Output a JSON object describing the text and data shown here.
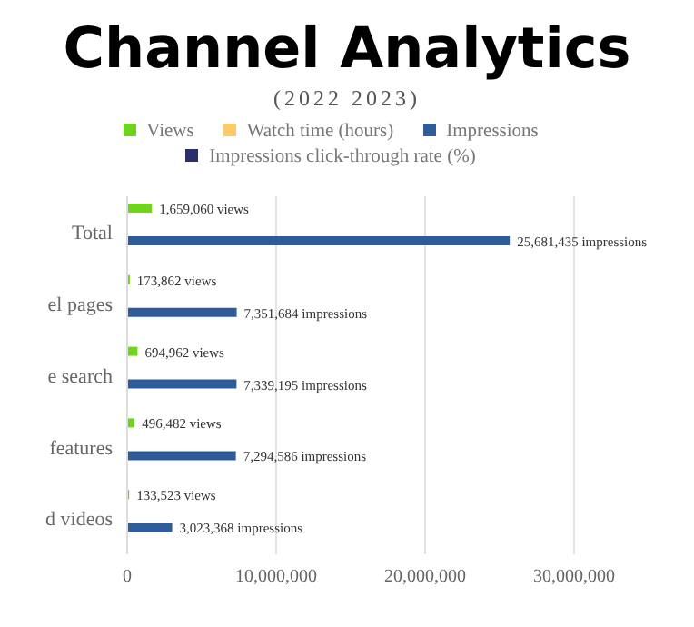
{
  "chart_data": {
    "type": "bar",
    "orientation": "horizontal",
    "title": "Channel Analytics",
    "subtitle": "(2022 2023)",
    "categories": [
      "Total",
      "el pages",
      "e search",
      "features",
      "d videos"
    ],
    "series": [
      {
        "name": "Views",
        "color": "#6fd41c",
        "values": [
          1659060,
          173862,
          694962,
          496482,
          133523
        ],
        "value_labels": [
          "1,659,060 views",
          "173,862 views",
          "694,962 views",
          "496,482 views",
          "133,523 views"
        ]
      },
      {
        "name": "Watch time (hours)",
        "color": "#fcc96b",
        "values": [
          null,
          null,
          null,
          null,
          null
        ]
      },
      {
        "name": "Impressions",
        "color": "#2e5c99",
        "values": [
          25681435,
          7351684,
          7339195,
          7294586,
          3023368
        ],
        "value_labels": [
          "25,681,435 impressions",
          "7,351,684 impressions",
          "7,339,195 impressions",
          "7,294,586 impressions",
          "3,023,368 impressions"
        ]
      },
      {
        "name": "Impressions click-through rate (%)",
        "color": "#2b2f6b",
        "values": [
          null,
          null,
          null,
          null,
          null
        ]
      }
    ],
    "xlim": [
      0,
      30000000
    ],
    "xticks": [
      {
        "value": 0,
        "label": "0"
      },
      {
        "value": 10000000,
        "label": "10,000,000"
      },
      {
        "value": 20000000,
        "label": "20,000,000"
      },
      {
        "value": 30000000,
        "label": "30,000,000"
      }
    ],
    "grid": "x",
    "legend": "top"
  }
}
